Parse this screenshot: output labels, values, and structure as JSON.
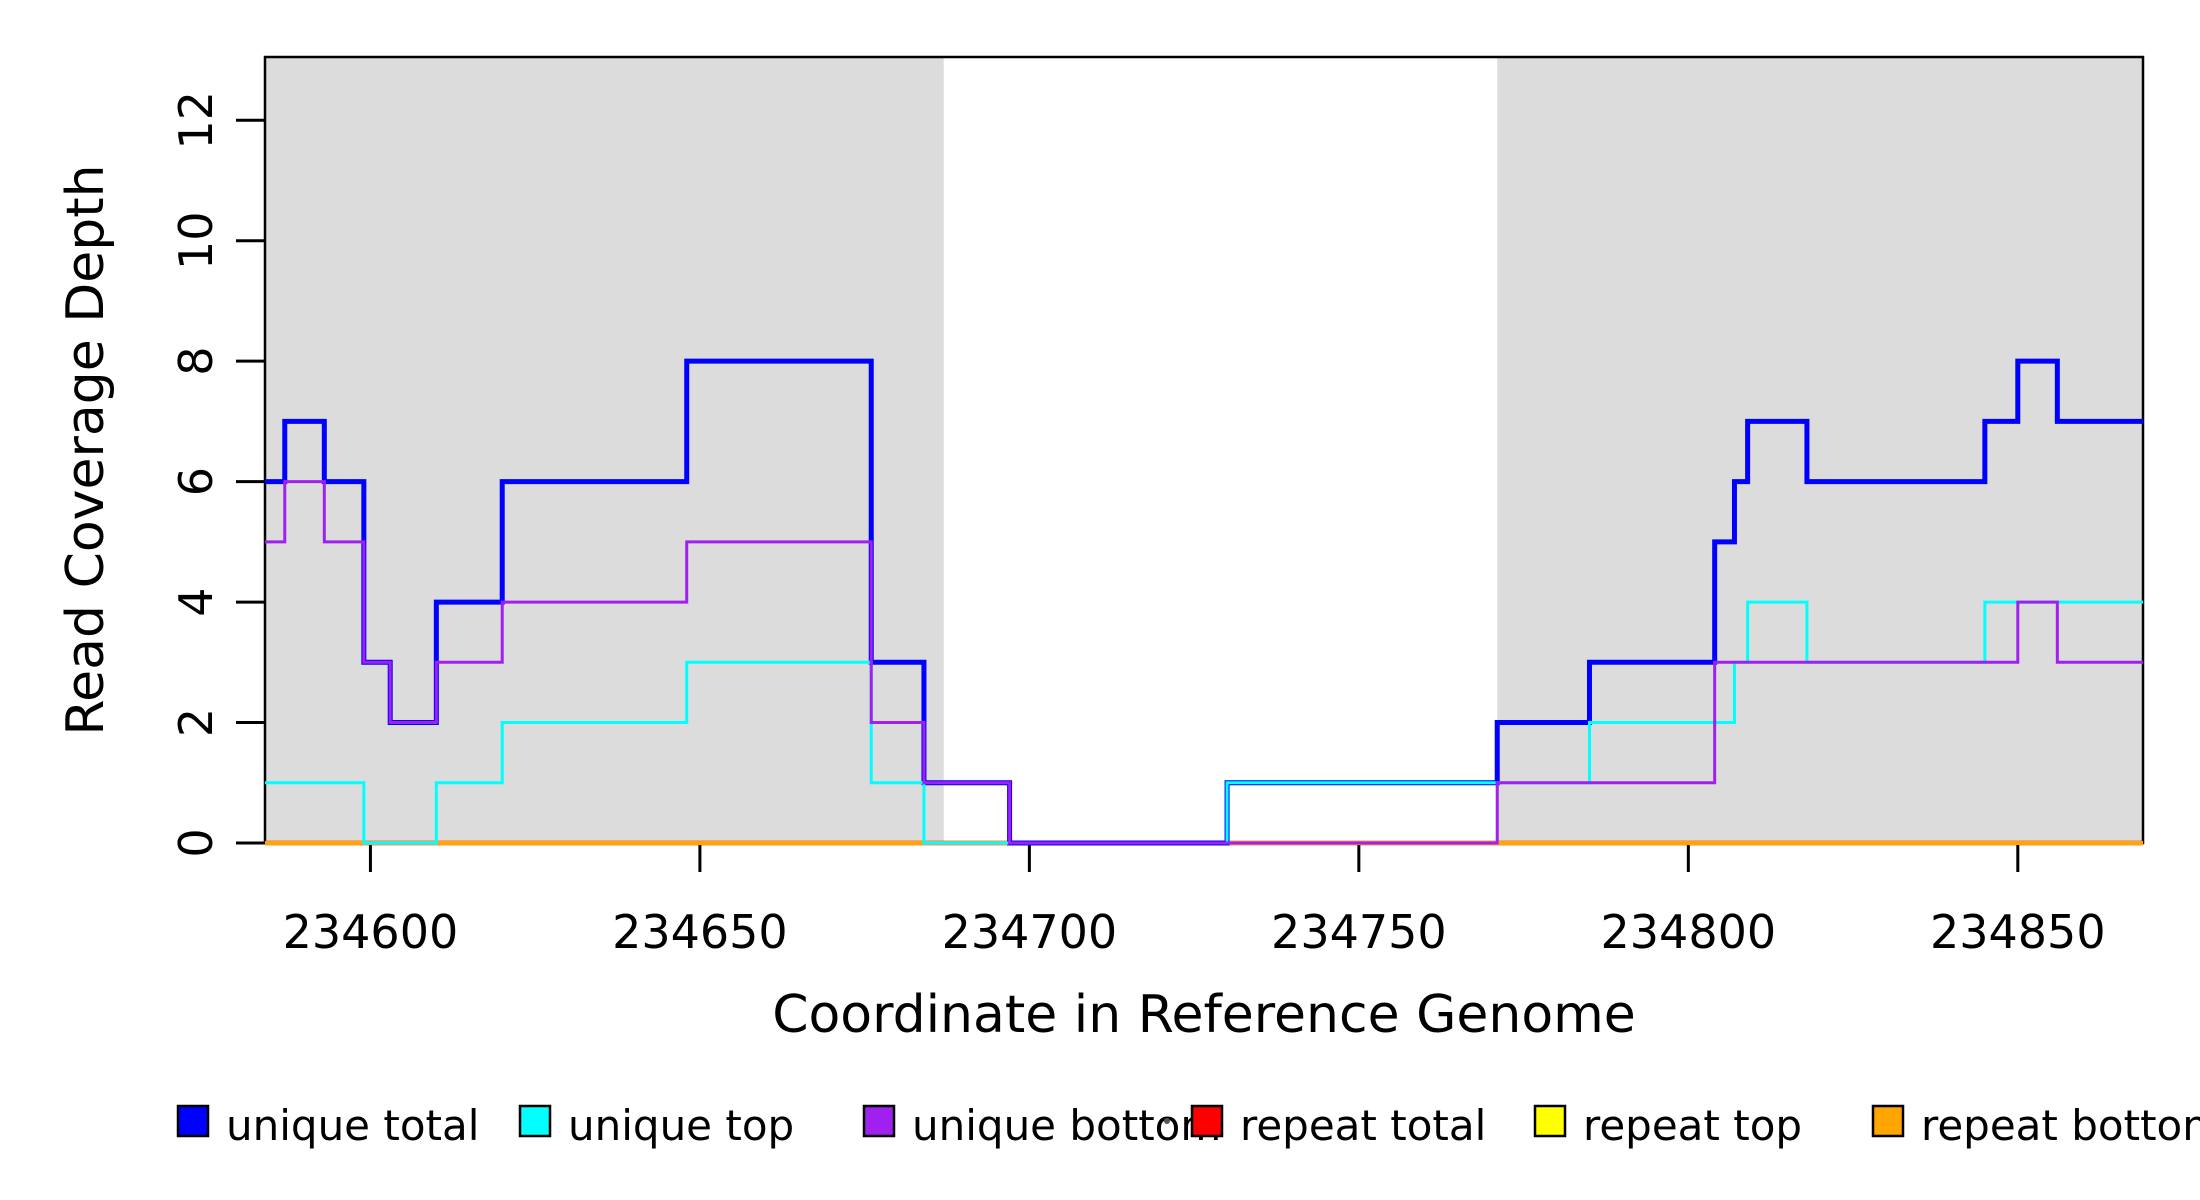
{
  "chart_data": {
    "type": "line",
    "subtype": "step",
    "title": "",
    "xlabel": "Coordinate in Reference Genome",
    "ylabel": "Read Coverage Depth",
    "xlim": [
      234584,
      234869
    ],
    "ylim": [
      0,
      13.05
    ],
    "x_ticks": [
      234600,
      234650,
      234700,
      234750,
      234800,
      234850
    ],
    "y_ticks": [
      0,
      2,
      4,
      6,
      8,
      10,
      12
    ],
    "grid": false,
    "legend_position": "bottom",
    "plot_background": "#FFFFFF",
    "shaded_regions": {
      "color": "#DCDCDC",
      "x_ranges": [
        [
          234584,
          234687
        ],
        [
          234771,
          234869
        ]
      ]
    },
    "series": [
      {
        "name": "unique total",
        "color": "#0000FF",
        "line_width": 5,
        "points": [
          [
            234584,
            6
          ],
          [
            234587,
            7
          ],
          [
            234593,
            6
          ],
          [
            234599,
            3
          ],
          [
            234603,
            2
          ],
          [
            234610,
            4
          ],
          [
            234620,
            6
          ],
          [
            234648,
            8
          ],
          [
            234676,
            3
          ],
          [
            234684,
            1
          ],
          [
            234697,
            0
          ],
          [
            234730,
            1
          ],
          [
            234771,
            2
          ],
          [
            234785,
            3
          ],
          [
            234804,
            5
          ],
          [
            234807,
            6
          ],
          [
            234809,
            7
          ],
          [
            234818,
            6
          ],
          [
            234845,
            7
          ],
          [
            234850,
            8
          ],
          [
            234856,
            7
          ]
        ]
      },
      {
        "name": "unique top",
        "color": "#00FFFF",
        "line_width": 3,
        "points": [
          [
            234584,
            1
          ],
          [
            234599,
            0
          ],
          [
            234610,
            1
          ],
          [
            234620,
            2
          ],
          [
            234648,
            3
          ],
          [
            234676,
            1
          ],
          [
            234684,
            0
          ],
          [
            234730,
            1
          ],
          [
            234785,
            2
          ],
          [
            234807,
            3
          ],
          [
            234809,
            4
          ],
          [
            234818,
            3
          ],
          [
            234845,
            4
          ]
        ]
      },
      {
        "name": "unique bottom",
        "color": "#A020F0",
        "line_width": 3,
        "points": [
          [
            234584,
            5
          ],
          [
            234587,
            6
          ],
          [
            234593,
            5
          ],
          [
            234599,
            3
          ],
          [
            234603,
            2
          ],
          [
            234610,
            3
          ],
          [
            234620,
            4
          ],
          [
            234648,
            5
          ],
          [
            234676,
            2
          ],
          [
            234684,
            1
          ],
          [
            234697,
            0
          ],
          [
            234771,
            1
          ],
          [
            234804,
            3
          ],
          [
            234850,
            4
          ],
          [
            234856,
            3
          ]
        ]
      },
      {
        "name": "repeat total",
        "color": "#FF0000",
        "line_width": 4.5,
        "points": [
          [
            234584,
            0
          ]
        ]
      },
      {
        "name": "repeat top",
        "color": "#FFFF00",
        "line_width": 3,
        "points": [
          [
            234584,
            0
          ]
        ]
      },
      {
        "name": "repeat bottom",
        "color": "#FFA500",
        "line_width": 4,
        "points": [
          [
            234584,
            0
          ]
        ]
      }
    ],
    "draw_order": [
      3,
      4,
      5,
      0,
      1,
      2
    ]
  }
}
